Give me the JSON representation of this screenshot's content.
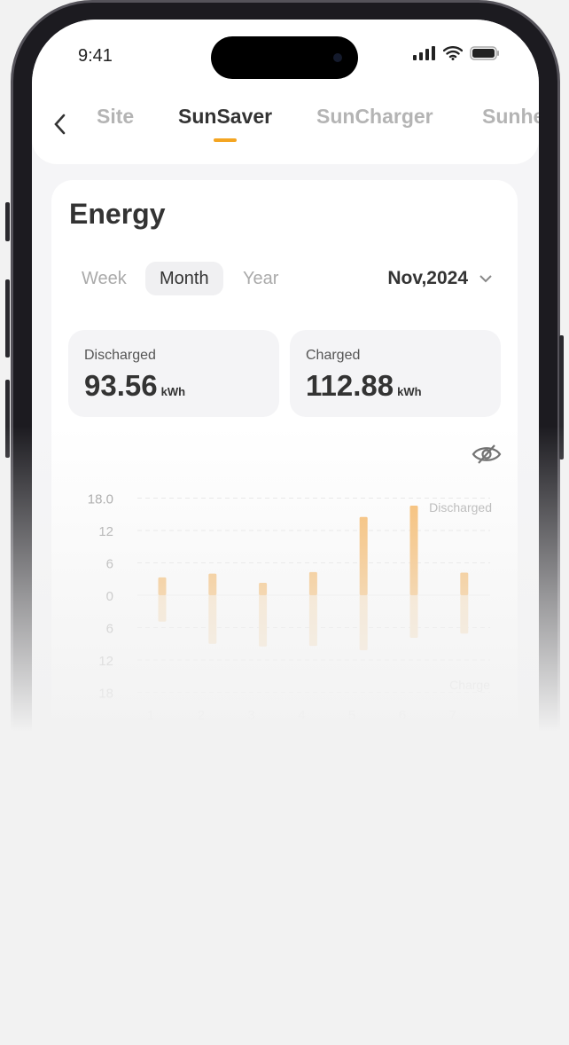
{
  "status_bar": {
    "time": "9:41"
  },
  "tabs": [
    {
      "label": "Site"
    },
    {
      "label": "SunSaver",
      "active": true
    },
    {
      "label": "SunCharger"
    },
    {
      "label": "Sunhe"
    }
  ],
  "energy": {
    "title": "Energy",
    "periods": [
      {
        "label": "Week"
      },
      {
        "label": "Month",
        "active": true
      },
      {
        "label": "Year"
      }
    ],
    "selected_date": "Nov,2024",
    "discharged": {
      "label": "Discharged",
      "value": "93.56",
      "unit": "kWh"
    },
    "charged": {
      "label": "Charged",
      "value": "112.88",
      "unit": "kWh"
    }
  },
  "colors": {
    "accent": "#f4a522",
    "bar_discharged": "#f7b35a",
    "bar_charged": "#f9dcb4"
  },
  "chart_data": {
    "type": "bar",
    "categories": [
      "1",
      "2",
      "3",
      "4",
      "5",
      "6",
      "7"
    ],
    "series": [
      {
        "name": "Discharged",
        "values": [
          3.3,
          4.0,
          2.3,
          4.3,
          14.5,
          16.6,
          4.2
        ]
      },
      {
        "name": "Charge",
        "values": [
          4.9,
          9.0,
          9.5,
          9.4,
          10.2,
          7.9,
          7.1
        ]
      }
    ],
    "ytick_labels": [
      "18.0",
      "12",
      "6",
      "0",
      "6",
      "12",
      "18"
    ],
    "ylim": [
      -18,
      18
    ],
    "grid": true
  }
}
